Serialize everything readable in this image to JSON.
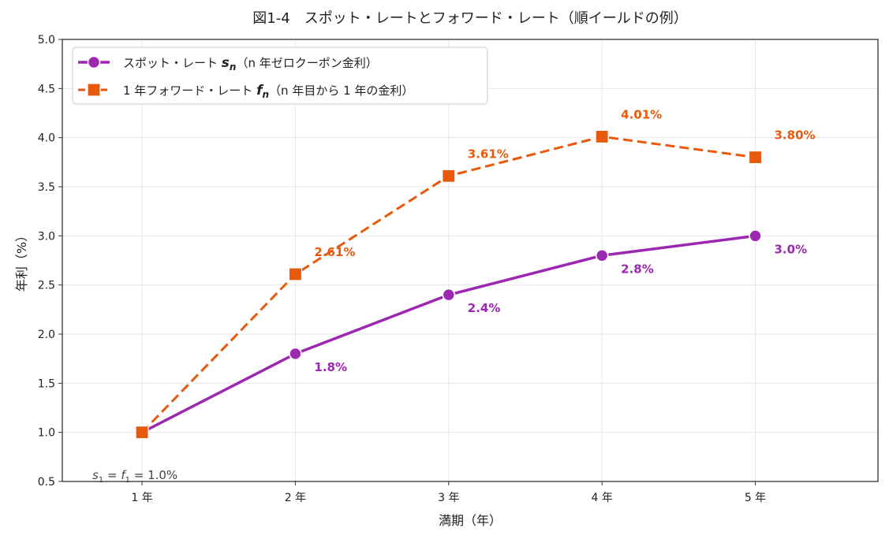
{
  "chart_data": {
    "type": "line",
    "title": "図1-4　スポット・レートとフォワード・レート（順イールドの例）",
    "xlabel": "満期（年）",
    "ylabel": "年利（%）",
    "categories": [
      "1 年",
      "2 年",
      "3 年",
      "4 年",
      "5 年"
    ],
    "x": [
      1,
      2,
      3,
      4,
      5
    ],
    "xlim": [
      0.48,
      5.8
    ],
    "ylim": [
      0.5,
      5.0
    ],
    "yticks": [
      0.5,
      1.0,
      1.5,
      2.0,
      2.5,
      3.0,
      3.5,
      4.0,
      4.5,
      5.0
    ],
    "ytick_labels": [
      "0.5",
      "1.0",
      "1.5",
      "2.0",
      "2.5",
      "3.0",
      "3.5",
      "4.0",
      "4.5",
      "5.0"
    ],
    "grid": true,
    "legend_position": "top-left",
    "series": [
      {
        "name": "スポット・レート sₙ（n 年ゼロクーポン金利）",
        "legend_prefix": "スポット・レート ",
        "legend_symbol": "s",
        "legend_sub": "n",
        "legend_suffix": "（n 年ゼロクーポン金利）",
        "marker": "circle",
        "dash": "solid",
        "color": "#9C27B0",
        "values": [
          1.0,
          1.8,
          2.4,
          2.8,
          3.0
        ],
        "data_labels": [
          "",
          "1.8%",
          "2.4%",
          "2.8%",
          "3.0%"
        ]
      },
      {
        "name": "1 年フォワード・レート fₙ（n 年目から 1 年の金利）",
        "legend_prefix": "1 年フォワード・レート ",
        "legend_symbol": "f",
        "legend_sub": "n",
        "legend_suffix": "（n 年目から 1 年の金利）",
        "marker": "square",
        "dash": "dashed",
        "color": "#E8590C",
        "values": [
          1.0,
          2.61,
          3.61,
          4.01,
          3.8
        ],
        "data_labels": [
          "",
          "2.61%",
          "3.61%",
          "4.01%",
          "3.80%"
        ]
      }
    ],
    "annotation": {
      "text_s": "s",
      "sub1": "1",
      "eq1": " = ",
      "text_f": "f",
      "sub2": "1",
      "eq2": " = 1.0%"
    }
  }
}
